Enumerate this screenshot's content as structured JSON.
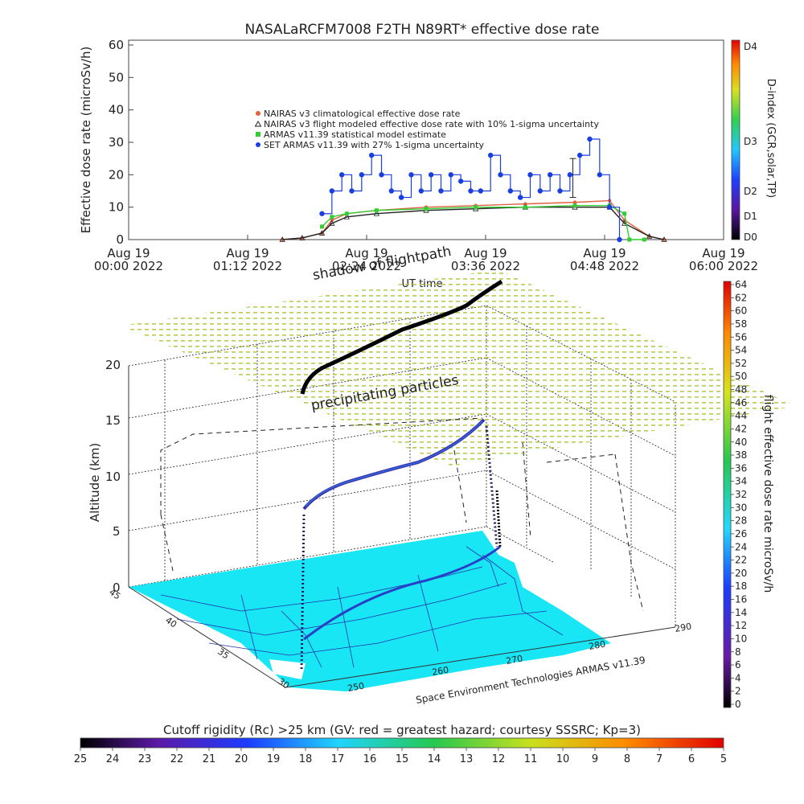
{
  "top_chart": {
    "title": "NASALaRCFM7008  F2TH N89RT* effective dose rate",
    "ylabel": "Effective dose rate (microSv/h)",
    "xlabel": "UT time",
    "y_ticks": [
      "0",
      "10",
      "20",
      "30",
      "40",
      "50",
      "60"
    ],
    "x_ticks": [
      {
        "line1": "Aug 19",
        "line2": "00:00 2022"
      },
      {
        "line1": "Aug 19",
        "line2": "01:12 2022"
      },
      {
        "line1": "Aug 19",
        "line2": "02:24 2022"
      },
      {
        "line1": "Aug 19",
        "line2": "03:36 2022"
      },
      {
        "line1": "Aug 19",
        "line2": "04:48 2022"
      },
      {
        "line1": "Aug 19",
        "line2": "06:00 2022"
      }
    ],
    "legend": [
      {
        "label": "NAIRAS v3 climatological effective dose rate",
        "color": "#e06040",
        "marker": "circle"
      },
      {
        "label": "NAIRAS v3 flight modeled effective dose rate with 10% 1-sigma uncertainty",
        "color": "#222222",
        "marker": "triangle"
      },
      {
        "label": "ARMAS v11.39 statistical model estimate",
        "color": "#33cc33",
        "marker": "square"
      },
      {
        "label": "SET ARMAS v11.39 with 27% 1-sigma uncertainty",
        "color": "#1a3fe0",
        "marker": "circle"
      }
    ],
    "dindex_label": "D-index (GCR,solar,TP)",
    "dindex_ticks": [
      "D4",
      "D3",
      "D2",
      "D1",
      "D0"
    ]
  },
  "chart_data": [
    {
      "type": "line",
      "title": "NASALaRCFM7008  F2TH N89RT* effective dose rate",
      "xlabel": "UT time",
      "ylabel": "Effective dose rate (microSv/h)",
      "x_unit": "hours UT since Aug 19 00:00 2022",
      "xlim": [
        0,
        6
      ],
      "ylim": [
        0,
        60
      ],
      "grid": false,
      "legend_position": "upper-left",
      "series": [
        {
          "name": "NAIRAS v3 climatological effective dose rate",
          "x": [
            1.55,
            1.75,
            1.95,
            2.05,
            2.2,
            2.5,
            3.0,
            3.5,
            4.0,
            4.5,
            4.85,
            5.0,
            5.25,
            5.4
          ],
          "y": [
            0,
            0.5,
            2,
            6,
            8,
            9,
            10,
            10.5,
            11,
            11.5,
            12,
            6,
            1,
            0
          ]
        },
        {
          "name": "NAIRAS v3 flight modeled effective dose rate with 10% 1-sigma uncertainty",
          "x": [
            1.55,
            1.75,
            1.95,
            2.05,
            2.2,
            2.5,
            3.0,
            3.5,
            4.0,
            4.5,
            4.85,
            5.0,
            5.25,
            5.4
          ],
          "y": [
            0,
            0.5,
            2,
            5,
            7,
            8,
            9,
            9.5,
            10,
            10,
            10,
            5,
            1,
            0
          ]
        },
        {
          "name": "ARMAS v11.39 statistical model estimate",
          "x": [
            1.95,
            2.05,
            2.2,
            2.5,
            3.0,
            3.5,
            4.0,
            4.5,
            4.85,
            5.0,
            5.05,
            5.2
          ],
          "y": [
            4,
            7,
            8,
            9,
            9.5,
            10,
            10,
            10.5,
            10.5,
            8,
            0,
            0
          ]
        },
        {
          "name": "SET ARMAS v11.39 with 27% 1-sigma uncertainty",
          "x": [
            1.95,
            2.05,
            2.15,
            2.25,
            2.35,
            2.45,
            2.55,
            2.65,
            2.75,
            2.85,
            2.95,
            3.05,
            3.15,
            3.25,
            3.35,
            3.45,
            3.55,
            3.65,
            3.75,
            3.85,
            3.95,
            4.05,
            4.15,
            4.25,
            4.35,
            4.45,
            4.55,
            4.65,
            4.75,
            4.85,
            4.95
          ],
          "y": [
            8,
            15,
            20,
            15,
            20,
            26,
            20,
            15,
            13,
            20,
            15,
            20,
            15,
            20,
            18,
            15,
            15,
            26,
            20,
            15,
            13,
            20,
            15,
            20,
            15,
            20,
            26,
            31,
            20,
            10,
            0
          ]
        }
      ]
    },
    {
      "type": "scatter",
      "title": "",
      "zlabel": "Altitude (km)",
      "zlim": [
        0,
        20
      ],
      "z_ticks": [
        "0",
        "5",
        "10",
        "15",
        "20"
      ],
      "lat_ticks": [
        "30",
        "35",
        "40",
        "45"
      ],
      "lon_ticks": [
        "250",
        "260",
        "270",
        "280",
        "290"
      ],
      "colorbar_label": "flight effective dose rate microSv/h",
      "colorbar_range": [
        0,
        64
      ],
      "floor_colorbar_label": "Cutoff rigidity (Rc) >25 km (GV: red = greatest hazard; courtesy SSSRC; Kp=3)",
      "floor_colorbar_ticks": [
        "25",
        "24",
        "23",
        "22",
        "21",
        "20",
        "19",
        "18",
        "17",
        "16",
        "15",
        "14",
        "13",
        "12",
        "11",
        "10",
        "9",
        "8",
        "7",
        "6",
        "5"
      ]
    }
  ],
  "map3d": {
    "annotations": [
      "shadow of flightpath",
      "precipitating particles"
    ],
    "credit": "Space Environment Technologies ARMAS v11.39",
    "colorbar_ticks": [
      "64",
      "62",
      "60",
      "58",
      "56",
      "54",
      "52",
      "50",
      "48",
      "46",
      "44",
      "42",
      "40",
      "38",
      "36",
      "34",
      "32",
      "30",
      "28",
      "26",
      "24",
      "22",
      "20",
      "18",
      "16",
      "14",
      "12",
      "10",
      "8",
      "6",
      "4",
      "2",
      "0"
    ],
    "colors": {
      "land": "#19e6f5",
      "coast": "#2233aa",
      "track": "#2a3fc8"
    }
  }
}
